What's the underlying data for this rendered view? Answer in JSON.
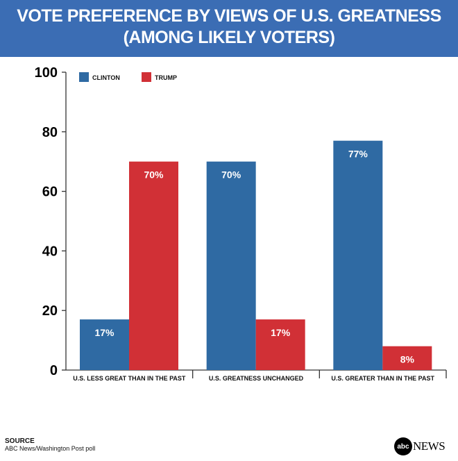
{
  "header": {
    "line1": "VOTE PREFERENCE BY VIEWS OF U.S. GREATNESS",
    "line2": "(AMONG LIKELY VOTERS)"
  },
  "chart_data": {
    "type": "bar",
    "title": "VOTE PREFERENCE BY VIEWS OF U.S. GREATNESS (AMONG LIKELY VOTERS)",
    "categories": [
      "U.S. LESS GREAT THAN IN THE PAST",
      "U.S. GREATNESS UNCHANGED",
      "U.S. GREATER THAN IN THE PAST"
    ],
    "series": [
      {
        "name": "CLINTON",
        "color": "#2f6aa3",
        "values": [
          17,
          70,
          77
        ],
        "labels": [
          "17%",
          "70%",
          "77%"
        ]
      },
      {
        "name": "TRUMP",
        "color": "#d13036",
        "values": [
          70,
          17,
          8
        ],
        "labels": [
          "70%",
          "17%",
          "8%"
        ]
      }
    ],
    "ylim": [
      0,
      100
    ],
    "yticks": [
      0,
      20,
      40,
      60,
      80,
      100
    ],
    "ytick_labels": [
      "0",
      "20",
      "40",
      "60",
      "80",
      "100"
    ],
    "legend": "top-left",
    "grid": false
  },
  "footer": {
    "source_label": "SOURCE",
    "source_text": "ABC News/Washington Post poll",
    "logo_text": "abcNEWS"
  }
}
